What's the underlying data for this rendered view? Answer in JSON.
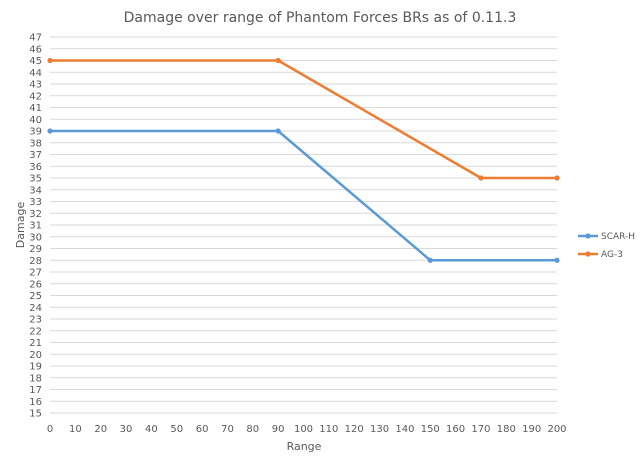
{
  "chart_data": {
    "type": "line",
    "title": "Damage over range of Phantom Forces BRs as of 0.11.3",
    "xlabel": "Range",
    "ylabel": "Damage",
    "xlim": [
      0,
      200
    ],
    "ylim": [
      15,
      47
    ],
    "x_ticks": [
      0,
      10,
      20,
      30,
      40,
      50,
      60,
      70,
      80,
      90,
      100,
      110,
      120,
      130,
      140,
      150,
      160,
      170,
      180,
      190,
      200
    ],
    "y_ticks": [
      15,
      16,
      17,
      18,
      19,
      20,
      21,
      22,
      23,
      24,
      25,
      26,
      27,
      28,
      29,
      30,
      31,
      32,
      33,
      34,
      35,
      36,
      37,
      38,
      39,
      40,
      41,
      42,
      43,
      44,
      45,
      46,
      47
    ],
    "grid": true,
    "legend_position": "right",
    "series": [
      {
        "name": "SCAR-H",
        "color": "#5B9BD5",
        "x": [
          0,
          90,
          150,
          200
        ],
        "y": [
          39,
          39,
          28,
          28
        ]
      },
      {
        "name": "AG-3",
        "color": "#ED7D31",
        "x": [
          0,
          90,
          170,
          200
        ],
        "y": [
          45,
          45,
          35,
          35
        ]
      }
    ]
  }
}
